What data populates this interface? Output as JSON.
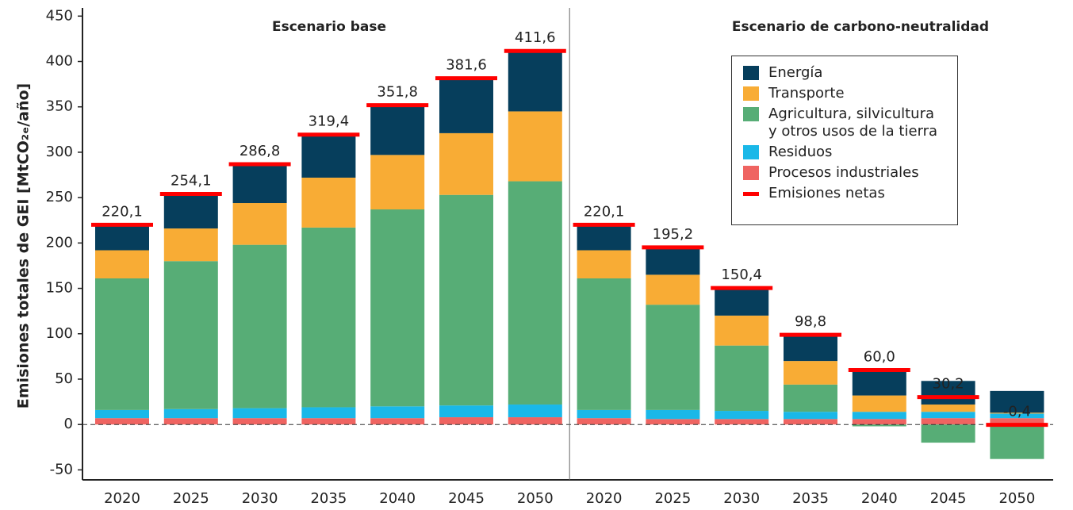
{
  "chart_data": {
    "type": "stacked_bar",
    "y_label": "Emisiones totales de GEI [MtCO₂ₑ/año]",
    "annotations": [
      "Escenario base",
      "Escenario de carbono-neutralidad"
    ],
    "categories": [
      "2020",
      "2025",
      "2030",
      "2035",
      "2040",
      "2045",
      "2050",
      "2020",
      "2025",
      "2030",
      "2035",
      "2040",
      "2045",
      "2050"
    ],
    "series": [
      {
        "name": "Procesos industriales",
        "color": "#ef6461",
        "values": [
          7,
          7,
          7,
          7,
          7,
          8,
          8,
          7,
          6,
          6,
          6,
          6,
          7,
          7
        ]
      },
      {
        "name": "Residuos",
        "color": "#1ab8e8",
        "values": [
          9,
          10,
          11,
          12,
          13,
          13,
          14,
          9,
          10,
          9,
          8,
          8,
          7,
          5
        ]
      },
      {
        "name": "Agricultura, silvicultura y otros usos de la tierra",
        "color": "#57ad76",
        "values": [
          145,
          163,
          180,
          198,
          217,
          232,
          246,
          145,
          116,
          72,
          30,
          -2,
          -20,
          -38
        ]
      },
      {
        "name": "Transporte",
        "color": "#f8ac35",
        "values": [
          31,
          36,
          46,
          55,
          60,
          68,
          77,
          31,
          33,
          33,
          26,
          18,
          8,
          1
        ]
      },
      {
        "name": "Energía",
        "color": "#063e5c",
        "values": [
          28,
          38,
          43,
          47,
          55,
          61,
          67,
          28,
          30,
          30,
          27,
          27,
          26,
          24
        ]
      }
    ],
    "net": {
      "name": "Emisiones netas",
      "color": "#ff0000",
      "values": [
        220.1,
        254.1,
        286.8,
        319.4,
        351.8,
        381.6,
        411.6,
        220.1,
        195.2,
        150.4,
        98.8,
        60.0,
        30.2,
        -0.4
      ],
      "value_labels": [
        "220,1",
        "254,1",
        "286,8",
        "319,4",
        "351,8",
        "381,6",
        "411,6",
        "220,1",
        "195,2",
        "150,4",
        "98,8",
        "60,0",
        "30,2",
        "-0,4"
      ]
    },
    "ylim": [
      -61,
      459
    ],
    "yticks": [
      -50,
      0,
      50,
      100,
      150,
      200,
      250,
      300,
      350,
      400,
      450
    ],
    "legend": "upper right"
  }
}
